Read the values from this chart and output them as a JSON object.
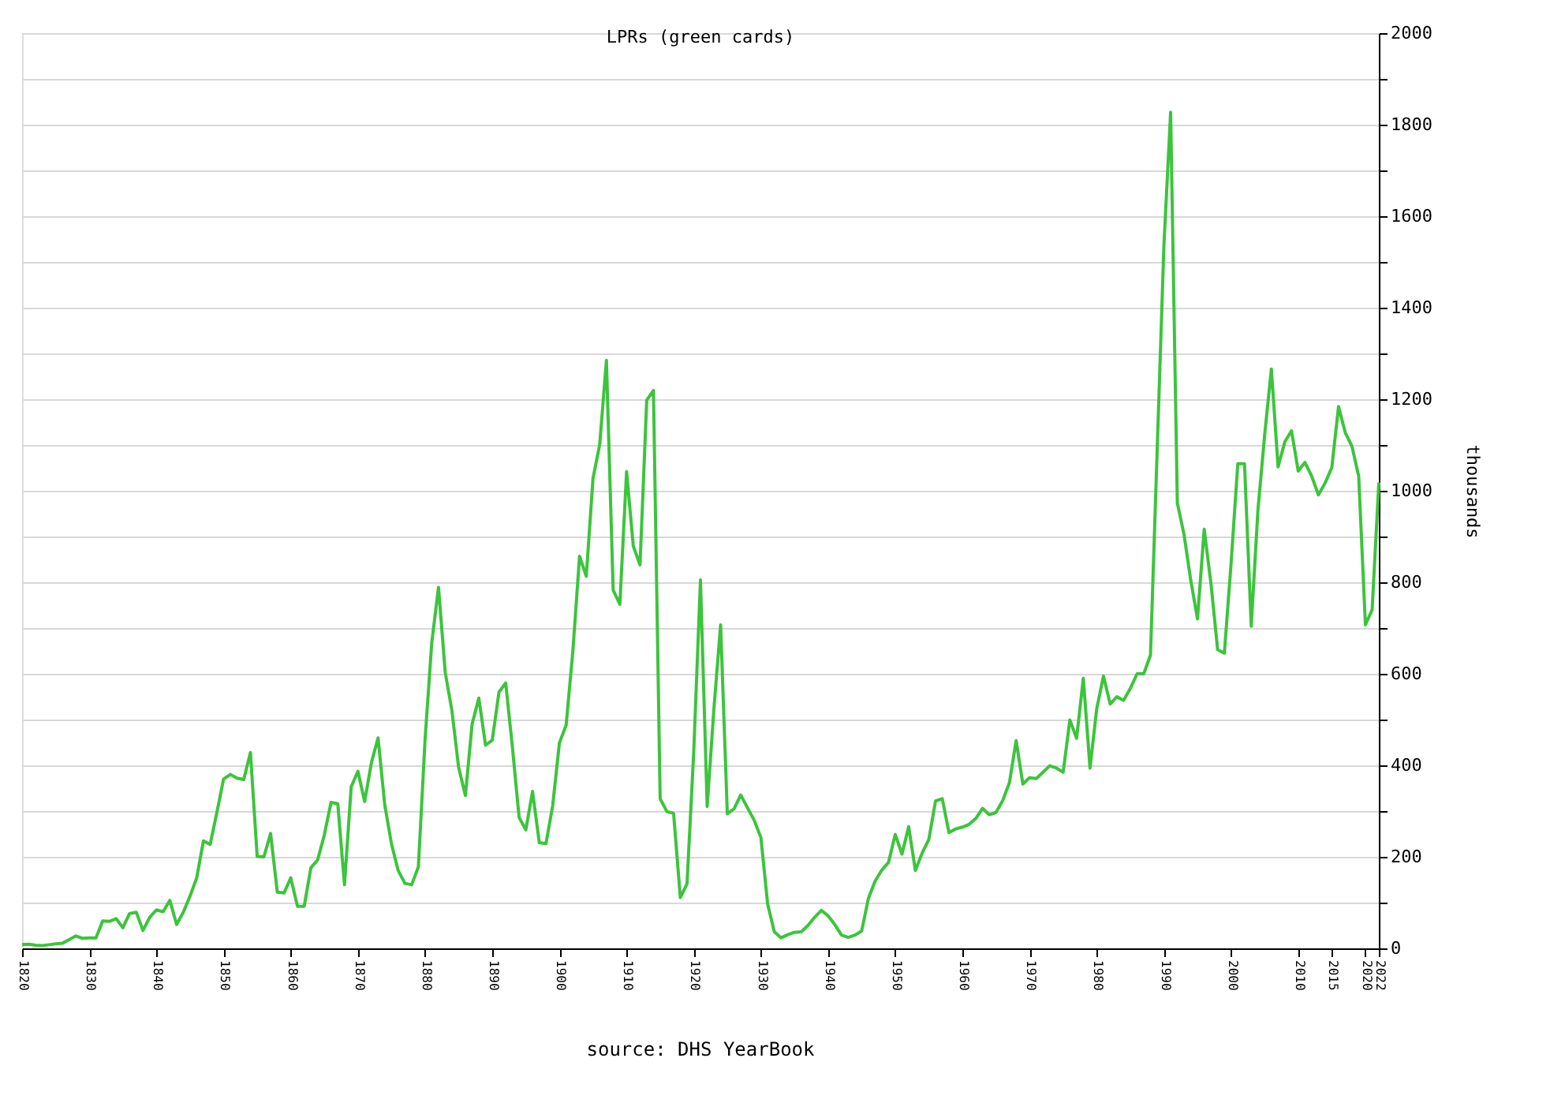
{
  "chart_data": {
    "type": "line",
    "title": "LPRs (green cards)",
    "ylabel": "thousands",
    "annotations": [
      "source: DHS YearBook"
    ],
    "x": [
      1820,
      1821,
      1822,
      1823,
      1824,
      1825,
      1826,
      1827,
      1828,
      1829,
      1830,
      1831,
      1832,
      1833,
      1834,
      1835,
      1836,
      1837,
      1838,
      1839,
      1840,
      1841,
      1842,
      1843,
      1844,
      1845,
      1846,
      1847,
      1848,
      1849,
      1850,
      1851,
      1852,
      1853,
      1854,
      1855,
      1856,
      1857,
      1858,
      1859,
      1860,
      1861,
      1862,
      1863,
      1864,
      1865,
      1866,
      1867,
      1868,
      1869,
      1870,
      1871,
      1872,
      1873,
      1874,
      1875,
      1876,
      1877,
      1878,
      1879,
      1880,
      1881,
      1882,
      1883,
      1884,
      1885,
      1886,
      1887,
      1888,
      1889,
      1890,
      1891,
      1892,
      1893,
      1894,
      1895,
      1896,
      1897,
      1898,
      1899,
      1900,
      1901,
      1902,
      1903,
      1904,
      1905,
      1906,
      1907,
      1908,
      1909,
      1910,
      1911,
      1912,
      1913,
      1914,
      1915,
      1916,
      1917,
      1918,
      1919,
      1920,
      1921,
      1922,
      1923,
      1924,
      1925,
      1926,
      1927,
      1928,
      1929,
      1930,
      1931,
      1932,
      1933,
      1934,
      1935,
      1936,
      1937,
      1938,
      1939,
      1940,
      1941,
      1942,
      1943,
      1944,
      1945,
      1946,
      1947,
      1948,
      1949,
      1950,
      1951,
      1952,
      1953,
      1954,
      1955,
      1956,
      1957,
      1958,
      1959,
      1960,
      1961,
      1962,
      1963,
      1964,
      1965,
      1966,
      1967,
      1968,
      1969,
      1970,
      1971,
      1972,
      1973,
      1974,
      1975,
      1976,
      1977,
      1978,
      1979,
      1980,
      1981,
      1982,
      1983,
      1984,
      1985,
      1986,
      1987,
      1988,
      1989,
      1990,
      1991,
      1992,
      1993,
      1994,
      1995,
      1996,
      1997,
      1998,
      1999,
      2000,
      2001,
      2002,
      2003,
      2004,
      2005,
      2006,
      2007,
      2008,
      2009,
      2010,
      2011,
      2012,
      2013,
      2014,
      2015,
      2016,
      2017,
      2018,
      2019,
      2020,
      2021,
      2022
    ],
    "series": [
      {
        "color": "#3cc43c",
        "values": [
          8,
          9,
          7,
          6,
          8,
          10,
          11,
          19,
          27,
          22,
          23,
          23,
          60,
          59,
          65,
          45,
          76,
          79,
          39,
          68,
          84,
          80,
          105,
          52,
          79,
          114,
          154,
          235,
          227,
          297,
          370,
          380,
          372,
          369,
          428,
          201,
          200,
          251,
          123,
          121,
          154,
          92,
          92,
          176,
          193,
          248,
          319,
          316,
          139,
          353,
          387,
          321,
          405,
          460,
          313,
          228,
          170,
          142,
          139,
          178,
          457,
          669,
          789,
          603,
          519,
          395,
          334,
          490,
          547,
          444,
          455,
          560,
          580,
          440,
          286,
          259,
          343,
          231,
          229,
          312,
          449,
          488,
          649,
          857,
          813,
          1027,
          1101,
          1285,
          783,
          752,
          1042,
          879,
          838,
          1198,
          1219,
          327,
          299,
          295,
          111,
          141,
          430,
          805,
          310,
          523,
          707,
          294,
          305,
          335,
          307,
          280,
          242,
          97,
          36,
          23,
          30,
          35,
          36,
          50,
          68,
          83,
          71,
          52,
          29,
          24,
          29,
          38,
          109,
          147,
          171,
          188,
          249,
          206,
          266,
          170,
          208,
          238,
          322,
          327,
          253,
          261,
          265,
          271,
          284,
          306,
          292,
          297,
          323,
          362,
          454,
          359,
          373,
          371,
          385,
          399,
          394,
          385,
          499,
          459,
          590,
          394,
          524,
          595,
          534,
          550,
          542,
          568,
          600,
          600,
          641,
          1090,
          1536,
          1827,
          973,
          904,
          804,
          720,
          916,
          798,
          653,
          645,
          841,
          1059,
          1059,
          704,
          958,
          1122,
          1266,
          1052,
          1107,
          1131,
          1043,
          1062,
          1032,
          991,
          1017,
          1051,
          1184,
          1127,
          1097,
          1032,
          707,
          740,
          1018
        ]
      }
    ],
    "xlim": [
      1820,
      2022
    ],
    "xticks": [
      1820,
      1830,
      1840,
      1850,
      1860,
      1870,
      1880,
      1890,
      1900,
      1910,
      1920,
      1930,
      1940,
      1950,
      1960,
      1970,
      1980,
      1990,
      2000,
      2010,
      2015,
      2020,
      2022
    ],
    "ylim": [
      0,
      2000
    ],
    "yticks": [
      0,
      {
        "value": 100,
        "label": null
      },
      200,
      {
        "value": 300,
        "label": null
      },
      400,
      {
        "value": 500,
        "label": null
      },
      600,
      {
        "value": 700,
        "label": null
      },
      800,
      {
        "value": 900,
        "label": null
      },
      1000,
      {
        "value": 1100,
        "label": null
      },
      1200,
      {
        "value": 1300,
        "label": null
      },
      1400,
      {
        "value": 1500,
        "label": null
      },
      1600,
      {
        "value": 1700,
        "label": null
      },
      1800,
      {
        "value": 1900,
        "label": null
      },
      2000
    ],
    "grid": "y",
    "line_style": "solid",
    "marker": "none"
  }
}
